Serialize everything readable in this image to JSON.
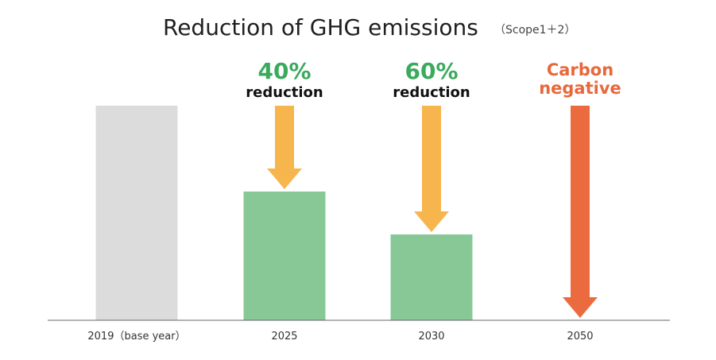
{
  "chart_data": {
    "type": "bar",
    "title": "Reduction of GHG emissions",
    "subtitle": "（Scope1＋2）",
    "categories": [
      "2019（base year）",
      "2025",
      "2030",
      "2050"
    ],
    "values": [
      100,
      60,
      40,
      0
    ],
    "ylim": [
      0,
      100
    ],
    "xlabel": "",
    "ylabel": "",
    "grid": false,
    "legend": "none",
    "bar_colors": [
      "#dcdcdc",
      "#88c897",
      "#88c897",
      "#ffffff"
    ],
    "annotations": [
      {
        "category": "2025",
        "value_text": "40%",
        "label": "reduction",
        "value_color": "#3aaa5c",
        "arrow_color": "#f7b54e",
        "arrow_to": 60
      },
      {
        "category": "2030",
        "value_text": "60%",
        "label": "reduction",
        "value_color": "#3aaa5c",
        "arrow_color": "#f7b54e",
        "arrow_to": 40
      },
      {
        "category": "2050",
        "value_text": "Carbon",
        "label": "negative",
        "value_color": "#e8683c",
        "arrow_color": "#eb6b3f",
        "arrow_to": 0
      }
    ]
  }
}
